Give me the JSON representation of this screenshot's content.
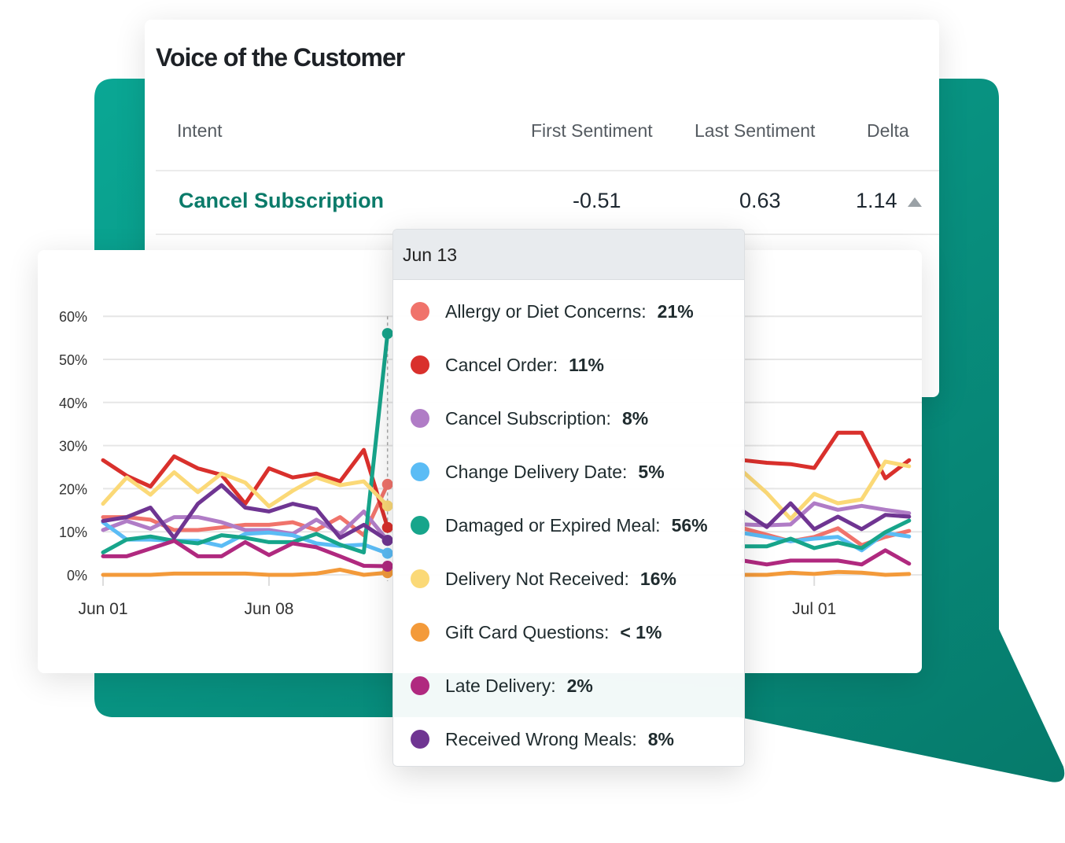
{
  "card": {
    "title": "Voice of the Customer",
    "columns": [
      "Intent",
      "First Sentiment",
      "Last Sentiment",
      "Delta"
    ],
    "row": {
      "intent": "Cancel Subscription",
      "first": "-0.51",
      "last": "0.63",
      "delta": "1.14",
      "delta_direction": "up"
    }
  },
  "colors": {
    "bubble_start": "#0aa794",
    "bubble_end": "#067a6b",
    "link": "#0b7b6a"
  },
  "tooltip": {
    "date": "Jun 13",
    "items": [
      {
        "label": "Allergy or Diet Concerns:",
        "value": "21%"
      },
      {
        "label": "Cancel Order:",
        "value": "11%"
      },
      {
        "label": "Cancel Subscription:",
        "value": "8%"
      },
      {
        "label": "Change Delivery Date:",
        "value": "5%"
      },
      {
        "label": "Damaged or Expired Meal:",
        "value": "56%"
      },
      {
        "label": "Delivery Not Received:",
        "value": "16%"
      },
      {
        "label": "Gift Card Questions:",
        "value": "< 1%"
      },
      {
        "label": "Late Delivery:",
        "value": "2%"
      },
      {
        "label": "Received Wrong Meals:",
        "value": "8%"
      }
    ]
  },
  "chart_data": {
    "type": "line",
    "x": [
      "Jun 01",
      "Jun 02",
      "Jun 03",
      "Jun 04",
      "Jun 05",
      "Jun 06",
      "Jun 07",
      "Jun 08",
      "Jun 09",
      "Jun 10",
      "Jun 11",
      "Jun 12",
      "Jun 13",
      "Jun 14",
      "Jun 15",
      "Jun 16",
      "Jun 17",
      "Jun 18",
      "Jun 19",
      "Jun 20",
      "Jun 21",
      "Jun 22",
      "Jun 23",
      "Jun 24",
      "Jun 25",
      "Jun 26",
      "Jun 27",
      "Jun 28",
      "Jun 29",
      "Jun 30",
      "Jul 01",
      "Jul 02",
      "Jul 03",
      "Jul 04",
      "Jul 05"
    ],
    "x_tick_labels": [
      "Jun 01",
      "Jun 08",
      "Jul 01"
    ],
    "y_tick_labels": [
      "0%",
      "10%",
      "20%",
      "30%",
      "40%",
      "50%",
      "60%"
    ],
    "ylim": [
      0,
      60
    ],
    "y_unit": "%",
    "grid": true,
    "highlight_x": "Jun 13",
    "series": [
      {
        "name": "Allergy or Diet Concerns",
        "color": "#f0736b",
        "values": [
          13.4,
          13.4,
          12.8,
          10.4,
          10.4,
          11,
          11.6,
          11.6,
          12.2,
          10.4,
          13.4,
          9.2,
          21,
          null,
          null,
          null,
          null,
          null,
          null,
          null,
          null,
          null,
          null,
          null,
          null,
          null,
          null,
          10.8,
          9.3,
          7.8,
          8.8,
          10.8,
          6.9,
          8.8,
          10.2
        ]
      },
      {
        "name": "Cancel Order",
        "color": "#d9302c",
        "values": [
          26.6,
          23,
          20.5,
          27.5,
          24.7,
          23.2,
          16.5,
          24.7,
          22.6,
          23.5,
          21.7,
          29,
          11,
          null,
          null,
          null,
          null,
          null,
          null,
          null,
          null,
          null,
          null,
          null,
          null,
          null,
          null,
          26.6,
          26,
          25.7,
          24.8,
          33,
          33,
          22.4,
          26.6
        ]
      },
      {
        "name": "Cancel Subscription",
        "color": "#b07cc6",
        "values": [
          10.4,
          12.5,
          10.7,
          13.4,
          13.4,
          12.2,
          10.4,
          10.4,
          9.5,
          12.8,
          9.5,
          14.7,
          8,
          null,
          null,
          null,
          null,
          null,
          null,
          null,
          null,
          null,
          null,
          null,
          null,
          null,
          null,
          11.7,
          11.5,
          11.7,
          16.6,
          15.1,
          16,
          15.1,
          14.3
        ]
      },
      {
        "name": "Change Delivery Date",
        "color": "#5bbcf5",
        "values": [
          12.2,
          8.2,
          8.2,
          7.9,
          7.9,
          6.7,
          9.5,
          9.8,
          9.2,
          7.3,
          6.7,
          7,
          5,
          null,
          null,
          null,
          null,
          null,
          null,
          null,
          null,
          null,
          null,
          null,
          null,
          null,
          null,
          9.7,
          8.8,
          7.8,
          8.4,
          8.8,
          5.7,
          9.7,
          8.9
        ]
      },
      {
        "name": "Damaged or Expired Meal",
        "color": "#17a58b",
        "values": [
          5.2,
          8.2,
          8.9,
          7.9,
          7.3,
          9.2,
          8.6,
          7.6,
          7.6,
          9.5,
          7,
          5.2,
          56,
          null,
          null,
          null,
          null,
          null,
          null,
          null,
          null,
          null,
          null,
          null,
          null,
          null,
          null,
          6.6,
          6.6,
          8.4,
          6.2,
          7.5,
          6.2,
          9.9,
          12.6
        ]
      },
      {
        "name": "Delivery Not Received",
        "color": "#fbd977",
        "values": [
          16.5,
          22.6,
          18.6,
          23.8,
          19.2,
          23.5,
          21.4,
          15.9,
          19.5,
          22.6,
          20.8,
          21.7,
          16,
          null,
          null,
          null,
          null,
          null,
          null,
          null,
          null,
          null,
          null,
          null,
          null,
          null,
          null,
          23.9,
          19,
          13,
          18.8,
          16.6,
          17.5,
          26.3,
          25.2
        ]
      },
      {
        "name": "Gift Card Questions",
        "color": "#f39a3a",
        "values": [
          0,
          0,
          0,
          0.3,
          0.3,
          0.3,
          0.3,
          0,
          0,
          0.3,
          1.2,
          0,
          0.5,
          null,
          null,
          null,
          null,
          null,
          null,
          null,
          null,
          null,
          null,
          null,
          null,
          null,
          null,
          0,
          0,
          0.5,
          0.2,
          0.7,
          0.5,
          0,
          0.2
        ]
      },
      {
        "name": "Late Delivery",
        "color": "#b0297f",
        "values": [
          4.3,
          4.3,
          6.1,
          7.9,
          4.3,
          4.3,
          7.6,
          4.6,
          7.3,
          6.4,
          4.3,
          2.1,
          2,
          null,
          null,
          null,
          null,
          null,
          null,
          null,
          null,
          null,
          null,
          null,
          null,
          null,
          null,
          3.3,
          2.4,
          3.3,
          3.3,
          3.3,
          2.4,
          5.7,
          2.6
        ]
      },
      {
        "name": "Received Wrong Meals",
        "color": "#6f3592",
        "values": [
          12.5,
          13.4,
          15.6,
          8.6,
          16.5,
          20.8,
          15.6,
          14.7,
          16.5,
          15.3,
          8.6,
          11.6,
          8,
          null,
          null,
          null,
          null,
          null,
          null,
          null,
          null,
          null,
          null,
          null,
          null,
          null,
          null,
          14.8,
          11.1,
          16.6,
          10.6,
          13.5,
          10.6,
          13.9,
          13.5
        ]
      }
    ]
  }
}
